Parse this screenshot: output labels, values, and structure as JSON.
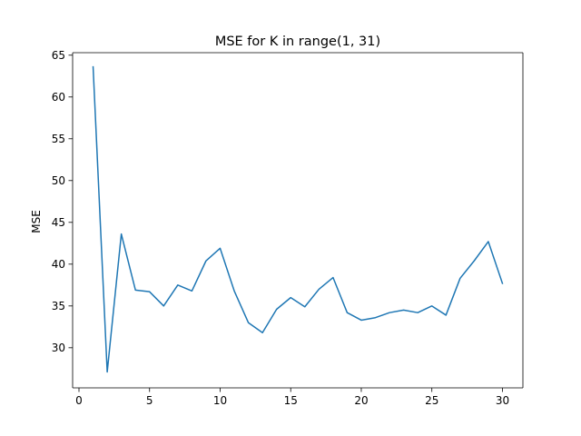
{
  "chart_data": {
    "type": "line",
    "title": "MSE for K in range(1, 31)",
    "xlabel": "",
    "ylabel": "MSE",
    "xlim": [
      -0.45,
      31.45
    ],
    "ylim": [
      25.2,
      65.3
    ],
    "xticks": [
      0,
      5,
      10,
      15,
      20,
      25,
      30
    ],
    "yticks": [
      30,
      35,
      40,
      45,
      50,
      55,
      60,
      65
    ],
    "grid": false,
    "series": [
      {
        "name": "MSE",
        "color": "#1f77b4",
        "x": [
          1,
          2,
          3,
          4,
          5,
          6,
          7,
          8,
          9,
          10,
          11,
          12,
          13,
          14,
          15,
          16,
          17,
          18,
          19,
          20,
          21,
          22,
          23,
          24,
          25,
          26,
          27,
          28,
          29,
          30
        ],
        "y": [
          63.6,
          27.1,
          43.6,
          36.9,
          36.7,
          35.0,
          37.5,
          36.8,
          40.4,
          41.9,
          36.8,
          33.0,
          31.8,
          34.6,
          36.0,
          34.9,
          37.0,
          38.4,
          34.2,
          33.3,
          33.6,
          34.2,
          34.5,
          34.2,
          35.0,
          33.9,
          38.3,
          40.4,
          42.7,
          37.7
        ]
      }
    ]
  }
}
